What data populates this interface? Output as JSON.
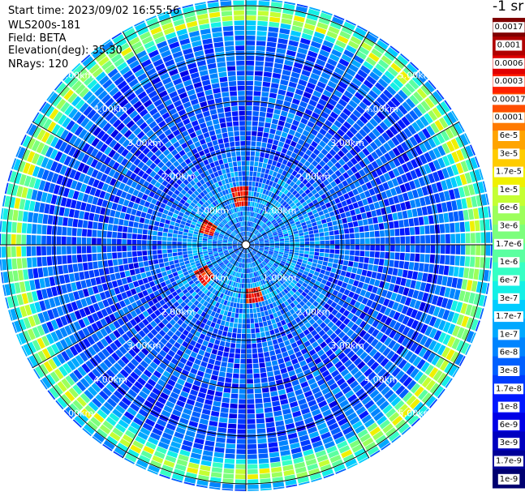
{
  "header": {
    "start_time": "Start time: 2023/09/02 16:55:56",
    "device": "WLS200s-181",
    "field": "Field: BETA",
    "elevation": "Elevation(deg): 35.30",
    "nrays": "NRays: 120"
  },
  "colorbar": {
    "unit_label": "-1 sr",
    "ticks": [
      "0.0017",
      "0.001",
      "0.0006",
      "0.0003",
      "0.00017",
      "0.0001",
      "6e-5",
      "3e-5",
      "1.7e-5",
      "1e-5",
      "6e-6",
      "3e-6",
      "1.7e-6",
      "1e-6",
      "6e-7",
      "3e-7",
      "1.7e-7",
      "1e-7",
      "6e-8",
      "3e-8",
      "1.7e-8",
      "1e-8",
      "6e-9",
      "3e-9",
      "1.7e-9",
      "1e-9"
    ],
    "colors": [
      "#7f0000",
      "#b00000",
      "#e00000",
      "#ff2000",
      "#ff4e00",
      "#ff7a00",
      "#ffa400",
      "#ffcc00",
      "#f0f000",
      "#c4ff33",
      "#9cff5b",
      "#7cff7c",
      "#5bffa0",
      "#36ffc4",
      "#14f0e6",
      "#00ccff",
      "#00a8ff",
      "#0084ff",
      "#0060ff",
      "#003cff",
      "#0018ff",
      "#0000e6",
      "#0000c0",
      "#000098",
      "#000070"
    ]
  },
  "chart_data": {
    "type": "heatmap",
    "projection": "polar (PPI scan)",
    "field": "BETA",
    "nrays": 120,
    "elevation_deg": 35.3,
    "range_rings_km": [
      1.0,
      2.0,
      3.0,
      4.0,
      5.0
    ],
    "ring_labels": [
      "1.00km",
      "2.00km",
      "3.00km",
      "4.00km",
      "5.00km"
    ],
    "azimuth_spokes_deg": [
      0,
      30,
      60,
      90,
      120,
      150,
      180,
      210,
      240,
      270,
      300,
      330
    ],
    "color_scale": "log",
    "value_range": [
      1e-09,
      0.0017
    ],
    "radial_profile": [
      {
        "range_km": 0.5,
        "beta": 6e-08
      },
      {
        "range_km": 1.0,
        "beta": 1e-07
      },
      {
        "range_km": 1.5,
        "beta": 6e-08
      },
      {
        "range_km": 2.0,
        "beta": 3e-08
      },
      {
        "range_km": 3.0,
        "beta": 3e-08
      },
      {
        "range_km": 4.0,
        "beta": 3e-08
      },
      {
        "range_km": 4.5,
        "beta": 6e-08
      },
      {
        "range_km": 4.8,
        "beta": 1e-05
      },
      {
        "range_km": 5.3,
        "beta": 1e-08
      }
    ],
    "hotspots": [
      {
        "azimuth_deg": 170,
        "range_km": 1.0,
        "beta": 0.0003
      },
      {
        "azimuth_deg": 235,
        "range_km": 1.0,
        "beta": 0.0003
      },
      {
        "azimuth_deg": 295,
        "range_km": 0.8,
        "beta": 0.0003
      },
      {
        "azimuth_deg": 355,
        "range_km": 0.95,
        "beta": 0.0003
      }
    ]
  }
}
